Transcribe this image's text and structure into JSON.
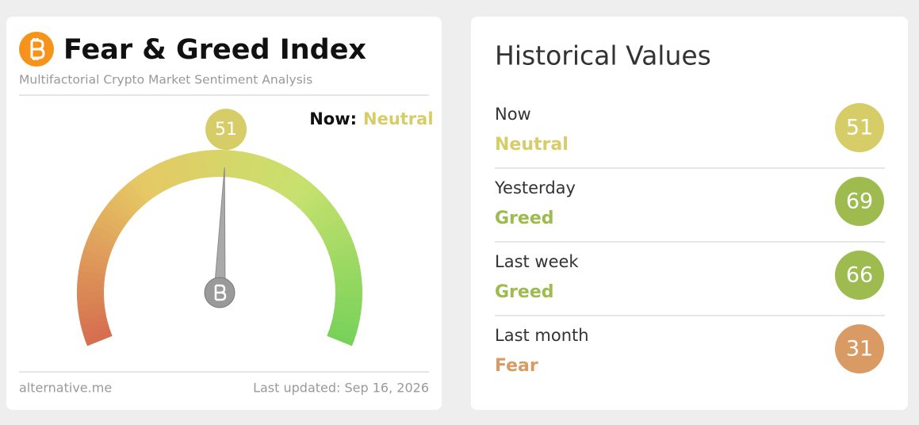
{
  "index_card": {
    "title": "Fear & Greed Index",
    "subtitle": "Multifactorial Crypto Market Sentiment Analysis",
    "now_label": "Now:",
    "now_class": "Neutral",
    "now_color": "#d7cd68",
    "value": 51,
    "range": [
      0,
      100
    ],
    "source": "alternative.me",
    "updated": "Last updated: Sep 16, 2026"
  },
  "history": {
    "title": "Historical Values",
    "items": [
      {
        "period": "Now",
        "class": "Neutral",
        "value": 51,
        "color": "#d7cd68"
      },
      {
        "period": "Yesterday",
        "class": "Greed",
        "value": 69,
        "color": "#9dbb4e"
      },
      {
        "period": "Last week",
        "class": "Greed",
        "value": 66,
        "color": "#9dbb4e"
      },
      {
        "period": "Last month",
        "class": "Fear",
        "value": 31,
        "color": "#d99b63"
      }
    ]
  }
}
